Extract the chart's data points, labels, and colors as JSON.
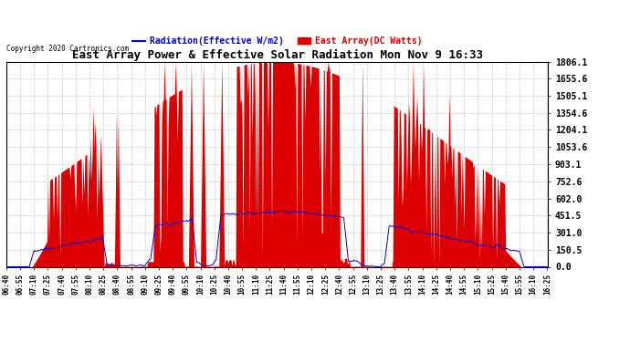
{
  "title": "East Array Power & Effective Solar Radiation Mon Nov 9 16:33",
  "copyright": "Copyright 2020 Cartronics.com",
  "legend_radiation": "Radiation(Effective W/m2)",
  "legend_east": "East Array(DC Watts)",
  "yticks": [
    0.0,
    150.5,
    301.0,
    451.5,
    602.0,
    752.6,
    903.1,
    1053.6,
    1204.1,
    1354.6,
    1505.1,
    1655.6,
    1806.1
  ],
  "ymax": 1806.1,
  "ymin": 0.0,
  "background_color": "#ffffff",
  "plot_bg_color": "#ffffff",
  "grid_color": "#bbbbbb",
  "red_color": "#dd0000",
  "blue_color": "#0000dd",
  "title_color": "#000000",
  "copyright_color": "#000000"
}
